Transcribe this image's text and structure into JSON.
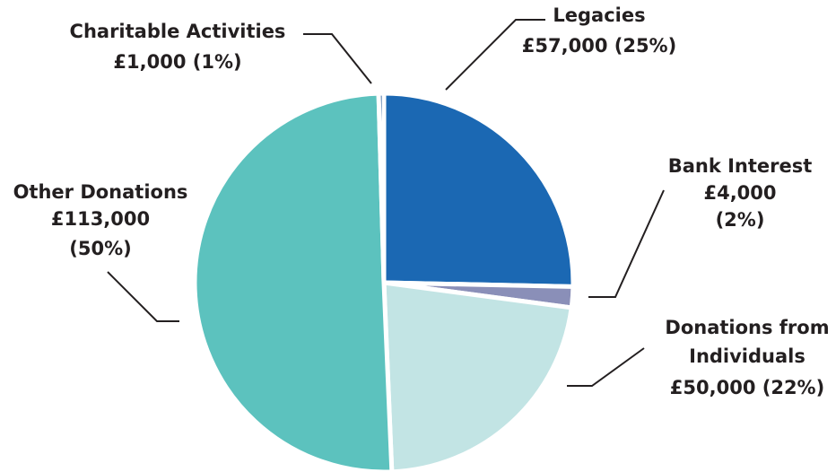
{
  "chart_data": {
    "type": "pie",
    "categories": [
      "Legacies",
      "Bank Interest",
      "Donations from Individuals",
      "Other Donations",
      "Charitable Activities"
    ],
    "values": [
      57000,
      4000,
      50000,
      113000,
      1000
    ],
    "value_labels": [
      "£57,000 (25%)",
      "£4,000 (2%)",
      "£50,000 (22%)",
      "£113,000 (50%)",
      "£1,000 (1%)"
    ],
    "colors": [
      "#1b68b3",
      "#8a8fb8",
      "#c2e4e4",
      "#5cc2be",
      "#1b4f8f"
    ]
  }
}
